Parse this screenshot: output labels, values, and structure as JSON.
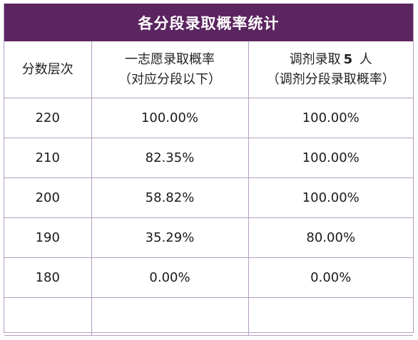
{
  "title": "各分段录取概率统计",
  "headers": {
    "tier": "分数层次",
    "first_choice_line1": "一志愿录取概率",
    "first_choice_line2": "（对应分段以下）",
    "adjust_prefix": "调剂录取",
    "adjust_count": "5",
    "adjust_suffix": "人",
    "adjust_line2": "（调剂分段录取概率）"
  },
  "rows": [
    {
      "score": "220",
      "first_choice": "100.00%",
      "adjusted": "100.00%"
    },
    {
      "score": "210",
      "first_choice": "82.35%",
      "adjusted": "100.00%"
    },
    {
      "score": "200",
      "first_choice": "58.82%",
      "adjusted": "100.00%"
    },
    {
      "score": "190",
      "first_choice": "35.29%",
      "adjusted": "80.00%"
    },
    {
      "score": "180",
      "first_choice": "0.00%",
      "adjusted": "0.00%"
    }
  ],
  "colors": {
    "header_bg": "#5b2560",
    "border": "#b49fbd"
  }
}
